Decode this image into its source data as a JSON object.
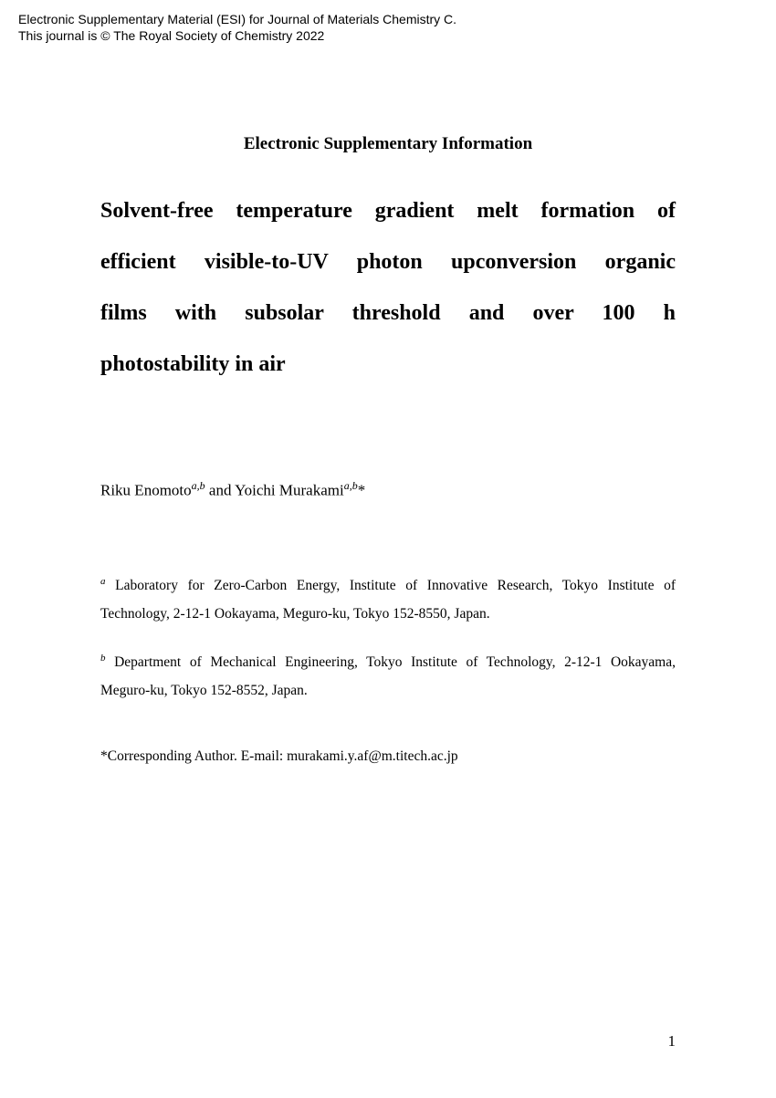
{
  "header": {
    "line1": "Electronic Supplementary Material (ESI) for Journal of Materials Chemistry C.",
    "line2": "This journal is © The Royal Society of Chemistry 2022"
  },
  "section_heading": "Electronic Supplementary Information",
  "title": {
    "line1": "Solvent-free temperature gradient melt formation of",
    "line2": "efficient visible-to-UV photon upconversion organic",
    "line3": "films with subsolar threshold and over 100 h",
    "line4": "photostability in air"
  },
  "authors": {
    "author1_name": "Riku Enomoto",
    "author1_sup": "a,b",
    "connector": " and ",
    "author2_name": "Yoichi Murakami",
    "author2_sup": "a,b",
    "author2_suffix": "*"
  },
  "affiliations": {
    "a": {
      "sup": "a",
      "text": " Laboratory for Zero-Carbon Energy, Institute of Innovative Research, Tokyo Institute of Technology, 2-12-1 Ookayama, Meguro-ku, Tokyo 152-8550, Japan."
    },
    "b": {
      "sup": "b",
      "text": " Department of Mechanical Engineering, Tokyo Institute of Technology, 2-12-1 Ookayama, Meguro-ku, Tokyo 152-8552, Japan."
    }
  },
  "corresponding": "*Corresponding Author. E-mail: murakami.y.af@m.titech.ac.jp",
  "page_number": "1"
}
